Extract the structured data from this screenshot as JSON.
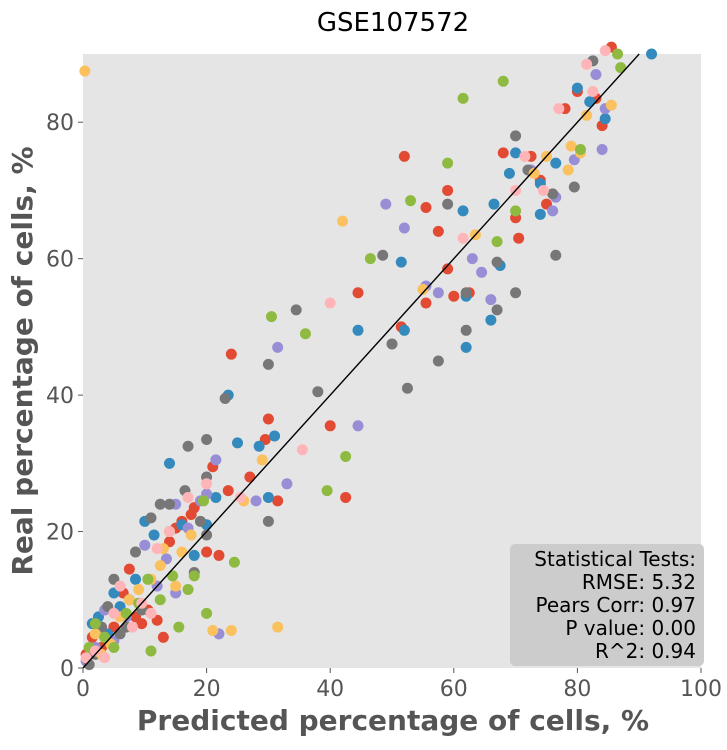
{
  "chart_data": {
    "type": "scatter",
    "title": "GSE107572",
    "xlabel": "Predicted percentage of cells, %",
    "ylabel": "Real percentage of cells, %",
    "xlim": [
      0,
      100
    ],
    "ylim": [
      0,
      90
    ],
    "xticks": [
      0,
      20,
      40,
      60,
      80,
      100
    ],
    "yticks": [
      0,
      20,
      40,
      60,
      80
    ],
    "grid": false,
    "background": "#E5E5E5",
    "reference_line": {
      "slope": 1,
      "intercept": 0,
      "color": "#000000"
    },
    "stats_box": {
      "lines": [
        "Statistical Tests:",
        "RMSE: 5.32",
        "Pears Corr: 0.97",
        "P value: 0.00",
        "R^2: 0.94"
      ],
      "placement": "bottom-right"
    },
    "series": [
      {
        "color": "#E24A33",
        "points": [
          [
            0.5,
            2
          ],
          [
            1.5,
            4.5
          ],
          [
            3,
            3
          ],
          [
            5,
            6
          ],
          [
            6.5,
            11
          ],
          [
            7.5,
            14.5
          ],
          [
            8.5,
            7.5
          ],
          [
            9.5,
            6.5
          ],
          [
            10.5,
            8.5
          ],
          [
            12,
            7
          ],
          [
            13,
            4.5
          ],
          [
            14,
            18.5
          ],
          [
            15,
            20.5
          ],
          [
            16,
            21.5
          ],
          [
            17.5,
            22.5
          ],
          [
            18,
            23.5
          ],
          [
            20,
            17
          ],
          [
            21,
            29.5
          ],
          [
            22,
            16.5
          ],
          [
            23.5,
            26
          ],
          [
            24,
            46
          ],
          [
            27,
            28
          ],
          [
            29.5,
            33.5
          ],
          [
            30,
            36.5
          ],
          [
            31.5,
            24.5
          ],
          [
            40,
            35.5
          ],
          [
            42.5,
            25
          ],
          [
            44.5,
            55
          ],
          [
            51.5,
            50
          ],
          [
            52,
            75
          ],
          [
            55.5,
            67.5
          ],
          [
            55.5,
            53.5
          ],
          [
            57.5,
            64
          ],
          [
            59,
            70
          ],
          [
            59,
            58.5
          ],
          [
            60,
            54.5
          ],
          [
            62.5,
            55
          ],
          [
            68,
            75.5
          ],
          [
            70,
            66
          ],
          [
            70.5,
            63
          ],
          [
            72.5,
            75
          ],
          [
            74,
            71.5
          ],
          [
            75,
            68
          ],
          [
            78,
            82
          ],
          [
            80,
            84.5
          ],
          [
            83,
            83.5
          ],
          [
            84,
            79.5
          ],
          [
            85.5,
            91
          ]
        ]
      },
      {
        "color": "#348ABD",
        "points": [
          [
            1.5,
            6.5
          ],
          [
            2.5,
            7.5
          ],
          [
            4,
            5
          ],
          [
            5,
            11
          ],
          [
            6,
            9
          ],
          [
            7.5,
            10
          ],
          [
            8.5,
            13
          ],
          [
            10,
            21.5
          ],
          [
            11.5,
            19.5
          ],
          [
            14,
            30
          ],
          [
            16,
            21
          ],
          [
            18,
            16.5
          ],
          [
            20,
            21
          ],
          [
            21.5,
            25
          ],
          [
            23.5,
            40
          ],
          [
            25,
            33
          ],
          [
            28.5,
            32.5
          ],
          [
            31,
            34
          ],
          [
            30,
            25
          ],
          [
            44.5,
            49.5
          ],
          [
            51.5,
            59.5
          ],
          [
            52,
            49.5
          ],
          [
            61.5,
            67
          ],
          [
            62,
            47
          ],
          [
            62,
            54.5
          ],
          [
            66,
            51
          ],
          [
            66.5,
            68
          ],
          [
            67.5,
            59
          ],
          [
            69,
            72.5
          ],
          [
            70,
            75.5
          ],
          [
            74,
            66.5
          ],
          [
            74,
            71
          ],
          [
            76.5,
            74
          ],
          [
            80,
            85
          ],
          [
            82,
            83
          ],
          [
            84.5,
            80.5
          ],
          [
            92,
            90
          ]
        ]
      },
      {
        "color": "#988ED5",
        "points": [
          [
            0.5,
            1
          ],
          [
            2,
            3
          ],
          [
            3.5,
            8.5
          ],
          [
            5,
            4
          ],
          [
            7,
            7.5
          ],
          [
            10,
            18
          ],
          [
            12,
            12
          ],
          [
            13.5,
            16
          ],
          [
            15,
            11
          ],
          [
            15,
            24
          ],
          [
            17,
            20.5
          ],
          [
            19,
            24.5
          ],
          [
            20,
            25.5
          ],
          [
            21.5,
            30.5
          ],
          [
            22,
            5
          ],
          [
            28,
            24.5
          ],
          [
            31.5,
            47
          ],
          [
            33,
            27
          ],
          [
            44.5,
            35.5
          ],
          [
            49,
            68
          ],
          [
            52,
            64.5
          ],
          [
            55.5,
            56
          ],
          [
            57.5,
            55
          ],
          [
            63,
            60
          ],
          [
            64.5,
            58
          ],
          [
            66,
            54
          ],
          [
            72.5,
            73
          ],
          [
            76,
            67
          ],
          [
            76.5,
            69
          ],
          [
            79.5,
            74.5
          ],
          [
            83,
            87
          ],
          [
            84,
            76
          ],
          [
            84.5,
            82
          ]
        ]
      },
      {
        "color": "#777777",
        "points": [
          [
            1,
            0.5
          ],
          [
            2,
            2
          ],
          [
            3,
            6
          ],
          [
            4,
            9
          ],
          [
            5,
            13
          ],
          [
            6,
            5
          ],
          [
            7,
            6
          ],
          [
            8.5,
            17
          ],
          [
            9.5,
            8.5
          ],
          [
            11,
            22
          ],
          [
            12.5,
            24
          ],
          [
            14,
            24
          ],
          [
            16.5,
            26
          ],
          [
            17,
            32.5
          ],
          [
            18,
            14
          ],
          [
            19,
            21.5
          ],
          [
            20,
            28
          ],
          [
            20,
            33.5
          ],
          [
            20,
            19.5
          ],
          [
            23,
            39.5
          ],
          [
            30,
            21.5
          ],
          [
            30,
            44.5
          ],
          [
            34.5,
            52.5
          ],
          [
            38,
            40.5
          ],
          [
            48.5,
            60.5
          ],
          [
            50,
            47.5
          ],
          [
            52.5,
            41
          ],
          [
            57.5,
            45
          ],
          [
            59,
            68
          ],
          [
            62,
            55
          ],
          [
            62,
            49.5
          ],
          [
            67,
            52.5
          ],
          [
            67,
            59.5
          ],
          [
            70,
            78
          ],
          [
            70,
            55
          ],
          [
            72,
            73
          ],
          [
            76,
            69.5
          ],
          [
            76.5,
            60.5
          ],
          [
            79.5,
            70.5
          ],
          [
            82.5,
            89
          ]
        ]
      },
      {
        "color": "#FBC15E",
        "points": [
          [
            0.3,
            87.5
          ],
          [
            2,
            5
          ],
          [
            3,
            2
          ],
          [
            4.5,
            3.5
          ],
          [
            6,
            7.5
          ],
          [
            7.5,
            10
          ],
          [
            9,
            11.5
          ],
          [
            11,
            13
          ],
          [
            12.5,
            15
          ],
          [
            13,
            17.5
          ],
          [
            15,
            12
          ],
          [
            16,
            17
          ],
          [
            17.5,
            19.5
          ],
          [
            21,
            5.5
          ],
          [
            24,
            5.5
          ],
          [
            26,
            24.5
          ],
          [
            29,
            30.5
          ],
          [
            31.5,
            6
          ],
          [
            42,
            65.5
          ],
          [
            55,
            55.5
          ],
          [
            63.5,
            63.5
          ],
          [
            73,
            72.5
          ],
          [
            75,
            75
          ],
          [
            78.5,
            73
          ],
          [
            79,
            76.5
          ],
          [
            80.5,
            75.5
          ],
          [
            81.5,
            81
          ],
          [
            85.5,
            82.5
          ]
        ]
      },
      {
        "color": "#8EBA42",
        "points": [
          [
            1,
            3
          ],
          [
            2,
            6.5
          ],
          [
            3.5,
            4.5
          ],
          [
            5,
            3
          ],
          [
            7,
            8
          ],
          [
            9,
            9.5
          ],
          [
            10.5,
            13
          ],
          [
            11,
            2.5
          ],
          [
            12.5,
            10
          ],
          [
            14,
            20
          ],
          [
            14.5,
            13.5
          ],
          [
            15.5,
            6
          ],
          [
            17,
            11.5
          ],
          [
            18,
            13.5
          ],
          [
            19.5,
            24.5
          ],
          [
            20,
            8
          ],
          [
            24.5,
            15.5
          ],
          [
            30.5,
            51.5
          ],
          [
            36,
            49
          ],
          [
            39.5,
            26
          ],
          [
            42.5,
            31
          ],
          [
            46.5,
            60
          ],
          [
            53,
            68.5
          ],
          [
            59,
            74
          ],
          [
            61.5,
            83.5
          ],
          [
            67,
            62.5
          ],
          [
            68,
            86
          ],
          [
            70,
            67
          ],
          [
            80.5,
            76
          ],
          [
            86.5,
            90
          ],
          [
            87,
            88
          ]
        ]
      },
      {
        "color": "#FFB5B8",
        "points": [
          [
            0.5,
            1.5
          ],
          [
            2,
            2.5
          ],
          [
            3.5,
            1.5
          ],
          [
            5,
            8
          ],
          [
            6,
            12
          ],
          [
            8,
            6
          ],
          [
            9.5,
            9.5
          ],
          [
            11,
            8
          ],
          [
            12,
            17.5
          ],
          [
            14,
            20
          ],
          [
            17,
            25
          ],
          [
            20,
            27
          ],
          [
            25.5,
            25
          ],
          [
            35.5,
            32
          ],
          [
            40,
            53.5
          ],
          [
            61.5,
            63
          ],
          [
            70,
            70
          ],
          [
            71.5,
            75
          ],
          [
            74.5,
            70
          ],
          [
            77,
            82
          ],
          [
            81.5,
            88.5
          ],
          [
            82.5,
            84.5
          ],
          [
            84.5,
            90.5
          ]
        ]
      }
    ]
  }
}
